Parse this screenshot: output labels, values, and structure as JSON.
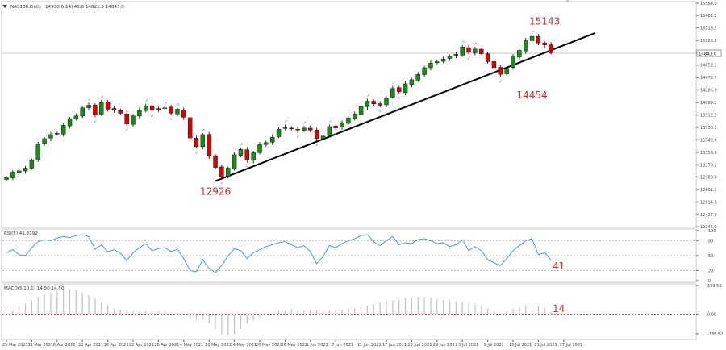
{
  "chart_data": [
    {
      "type": "candlestick",
      "symbol_label": "NAS100,Daily",
      "ohlc_label": "14930.6 14946.8 14821.5 14843.0",
      "current_price_label": "14843.0",
      "ylim": [
        12245.9,
        15584.0
      ],
      "y_ticks": [
        15584.0,
        15402.2,
        15215.5,
        15028.8,
        14846.0,
        14659.3,
        14472.7,
        14286.0,
        14099.2,
        13912.5,
        13730.3,
        13543.6,
        13356.9,
        13170.2,
        12988.0,
        12801.3,
        12614.6,
        12427.9,
        12245.9
      ],
      "x_ticks": [
        "25 Mar 2021",
        "31 Mar 2021",
        "6 Apr 2021",
        "12 Apr 2021",
        "16 Apr 2021",
        "22 Apr 2021",
        "28 Apr 2021",
        "4 May 2021",
        "10 May 2021",
        "14 May 2021",
        "20 May 2021",
        "26 May 2021",
        "1 Jun 2021",
        "7 Jun 2021",
        "11 Jun 2021",
        "17 Jun 2021",
        "23 Jun 2021",
        "29 Jun 2021",
        "5 Jul 2021",
        "9 Jul 2021",
        "15 Jul 2021",
        "21 Jul 2021",
        "27 Jul 2021"
      ],
      "closes": [
        12980,
        13060,
        13080,
        13120,
        13240,
        13480,
        13560,
        13620,
        13640,
        13760,
        13860,
        13900,
        14020,
        14060,
        13920,
        14100,
        14000,
        13990,
        13940,
        13780,
        13900,
        13980,
        14050,
        13990,
        14010,
        14020,
        13940,
        14000,
        13880,
        13570,
        13440,
        13620,
        13300,
        13130,
        12990,
        13120,
        13320,
        13400,
        13240,
        13350,
        13470,
        13500,
        13580,
        13700,
        13730,
        13710,
        13690,
        13720,
        13690,
        13560,
        13600,
        13740,
        13720,
        13800,
        13870,
        13930,
        14040,
        14120,
        14080,
        14060,
        14170,
        14310,
        14260,
        14380,
        14440,
        14520,
        14620,
        14690,
        14710,
        14750,
        14790,
        14820,
        14930,
        14850,
        14900,
        14830,
        14710,
        14620,
        14520,
        14610,
        14790,
        14880,
        15030,
        15090,
        14990,
        14960,
        14843
      ],
      "annotations": [
        {
          "text": "15143",
          "date": "23 Jul 2021",
          "price": 15143
        },
        {
          "text": "14454",
          "date": "19 Jul 2021",
          "price": 14454
        },
        {
          "text": "12926",
          "date": "12 May 2021",
          "price": 12926
        }
      ],
      "trendline": {
        "start": {
          "date": "12 May 2021",
          "price": 12926
        },
        "end": {
          "date": "3 Aug 2021",
          "price": 15140
        }
      },
      "colors": {
        "bull": "#1a8a1a",
        "bear": "#dd0000",
        "annotation": "#d9262c",
        "trendline": "#000000"
      }
    },
    {
      "type": "line",
      "label": "RSI(5) 41.3192",
      "ylim": [
        0,
        100
      ],
      "y_ticks": [
        100,
        80,
        50,
        20,
        0
      ],
      "levels": [
        80,
        50,
        20
      ],
      "values": [
        56,
        62,
        52,
        50,
        66,
        78,
        82,
        80,
        85,
        88,
        86,
        90,
        92,
        88,
        63,
        72,
        58,
        62,
        55,
        40,
        56,
        66,
        74,
        60,
        64,
        66,
        58,
        63,
        44,
        20,
        18,
        42,
        24,
        16,
        30,
        50,
        64,
        60,
        44,
        56,
        62,
        68,
        72,
        76,
        78,
        72,
        66,
        70,
        58,
        34,
        48,
        70,
        66,
        74,
        80,
        84,
        90,
        92,
        78,
        70,
        80,
        88,
        72,
        76,
        74,
        82,
        84,
        80,
        74,
        76,
        68,
        72,
        82,
        60,
        68,
        60,
        42,
        36,
        30,
        44,
        60,
        70,
        80,
        84,
        52,
        56,
        41
      ],
      "last_label": "41",
      "colors": {
        "line": "#3c8dd6",
        "level": "#9a9a9a"
      }
    },
    {
      "type": "bar",
      "label": "MACD(5,10,1) 14.50 14.50",
      "ylim": [
        -170,
        199.59
      ],
      "y_ticks": [
        199.59,
        0.0,
        -135.52
      ],
      "tick_labels": [
        "199.59",
        "0.00",
        "-135.52"
      ],
      "values": [
        4,
        22,
        52,
        72,
        96,
        120,
        138,
        150,
        160,
        170,
        170,
        165,
        150,
        132,
        108,
        82,
        60,
        40,
        32,
        26,
        20,
        20,
        20,
        20,
        18,
        16,
        12,
        10,
        0,
        -28,
        -40,
        -30,
        -60,
        -100,
        -140,
        -150,
        -140,
        -100,
        -65,
        -40,
        -20,
        0,
        8,
        20,
        30,
        36,
        34,
        30,
        28,
        26,
        24,
        28,
        30,
        32,
        38,
        42,
        52,
        60,
        70,
        80,
        88,
        96,
        100,
        110,
        118,
        120,
        118,
        114,
        106,
        100,
        96,
        92,
        86,
        80,
        72,
        60,
        40,
        20,
        8,
        18,
        36,
        50,
        60,
        58,
        52,
        48,
        14.5
      ],
      "last_label": "14",
      "colors": {
        "bar": "#c0c0c0",
        "zero": "#e02020"
      }
    }
  ]
}
